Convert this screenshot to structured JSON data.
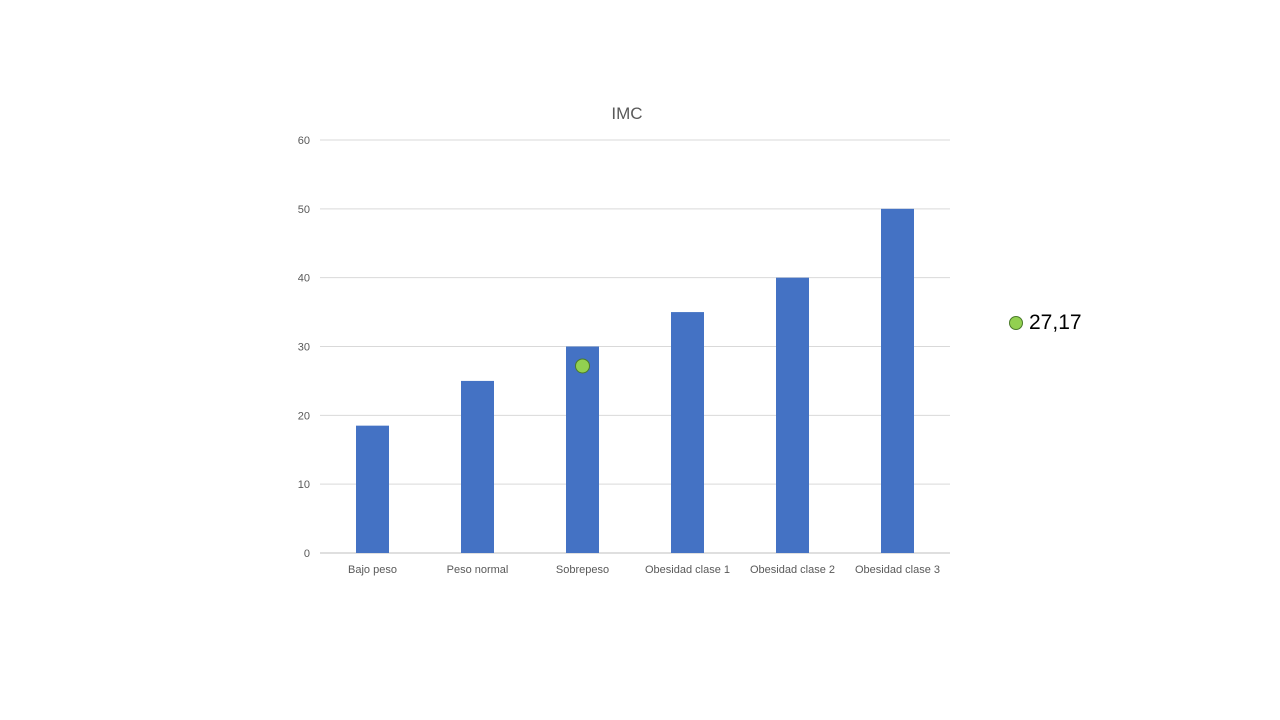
{
  "chart_data": {
    "type": "bar",
    "title": "IMC",
    "xlabel": "",
    "ylabel": "",
    "categories": [
      "Bajo peso",
      "Peso normal",
      "Sobrepeso",
      "Obesidad clase 1",
      "Obesidad clase 2",
      "Obesidad clase 3"
    ],
    "values": [
      18.5,
      25,
      30,
      35,
      40,
      50
    ],
    "ylim": [
      0,
      60
    ],
    "yticks": [
      0,
      10,
      20,
      30,
      40,
      50,
      60
    ],
    "grid": true,
    "legend": "none",
    "bar_color": "#4472c4",
    "marker": {
      "category": "Sobrepeso",
      "value": 27.17,
      "label": "27,17",
      "color": "#92d050"
    }
  }
}
